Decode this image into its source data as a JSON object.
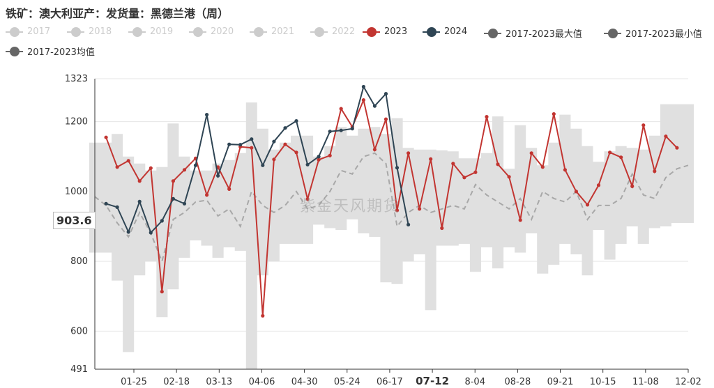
{
  "title": "铁矿：澳大利亚产：发货量：黑德兰港（周）",
  "watermark": "紫金天风期货",
  "axis_pointer": {
    "y_label": "903.6",
    "x_label": "07-12"
  },
  "colors": {
    "y2023": "#c23531",
    "y2024": "#2f4554",
    "band": "#e0e0e0",
    "mean": "#a8a8a8",
    "inactive": "#cccccc",
    "stat": "#666666"
  },
  "legend": [
    {
      "label": "2017",
      "active": false,
      "color": "#cccccc"
    },
    {
      "label": "2018",
      "active": false,
      "color": "#cccccc"
    },
    {
      "label": "2019",
      "active": false,
      "color": "#cccccc"
    },
    {
      "label": "2020",
      "active": false,
      "color": "#cccccc"
    },
    {
      "label": "2021",
      "active": false,
      "color": "#cccccc"
    },
    {
      "label": "2022",
      "active": false,
      "color": "#cccccc"
    },
    {
      "label": "2023",
      "active": true,
      "color": "#c23531"
    },
    {
      "label": "2024",
      "active": true,
      "color": "#2f4554"
    },
    {
      "label": "2017-2023最大值",
      "active": true,
      "color": "#666666"
    },
    {
      "label": "2017-2023最小值",
      "active": true,
      "color": "#666666"
    },
    {
      "label": "2017-2023均值",
      "active": true,
      "color": "#666666"
    }
  ],
  "chart_data": {
    "type": "line",
    "title": "铁矿：澳大利亚产：发货量：黑德兰港（周）",
    "x_ticks": [
      "01-25",
      "02-18",
      "03-13",
      "04-06",
      "04-30",
      "05-24",
      "06-17",
      "07-12",
      "8-04",
      "08-28",
      "09-21",
      "10-15",
      "11-08",
      "12-02"
    ],
    "y_ticks": [
      491,
      600,
      800,
      1000,
      1200,
      1323
    ],
    "ylim": [
      491,
      1323
    ],
    "xlim": [
      0,
      53
    ],
    "grid": "horizontal",
    "legend_position": "top",
    "series": [
      {
        "name": "2023",
        "x": [
          1,
          2,
          3,
          4,
          5,
          6,
          7,
          8,
          9,
          10,
          11,
          12,
          13,
          14,
          15,
          16,
          17,
          18,
          19,
          20,
          21,
          22,
          23,
          24,
          25,
          26,
          27,
          28,
          29,
          30,
          31,
          32,
          33,
          34,
          35,
          36,
          37,
          38,
          39,
          40,
          41,
          42,
          43,
          44,
          45,
          46,
          47,
          48,
          49,
          50,
          51,
          52
        ],
        "values": [
          1155,
          1070,
          1088,
          1030,
          1067,
          713,
          1030,
          1062,
          1095,
          990,
          1070,
          1007,
          1128,
          1125,
          644,
          1092,
          1135,
          1112,
          978,
          1091,
          1103,
          1237,
          1185,
          1262,
          1120,
          1207,
          946,
          1110,
          950,
          1093,
          895,
          1080,
          1040,
          1055,
          1214,
          1078,
          1042,
          918,
          1110,
          1070,
          1222,
          1062,
          1000,
          962,
          1018,
          1112,
          1098,
          1015,
          1190,
          1058,
          1158,
          1125
        ]
      },
      {
        "name": "2024",
        "x": [
          1,
          2,
          3,
          4,
          5,
          6,
          7,
          8,
          9,
          10,
          11,
          12,
          13,
          14,
          15,
          16,
          17,
          18,
          19,
          20,
          21,
          22,
          23,
          24,
          25,
          26,
          27,
          28
        ],
        "values": [
          965,
          955,
          884,
          971,
          882,
          916,
          979,
          965,
          1075,
          1220,
          1045,
          1135,
          1134,
          1150,
          1075,
          1143,
          1182,
          1202,
          1077,
          1100,
          1172,
          1175,
          1180,
          1300,
          1245,
          1280,
          1068,
          905
        ]
      },
      {
        "name": "2017-2023最大值",
        "x": [
          0,
          1,
          2,
          3,
          4,
          5,
          6,
          7,
          8,
          9,
          10,
          11,
          12,
          13,
          14,
          15,
          16,
          17,
          18,
          19,
          20,
          21,
          22,
          23,
          24,
          25,
          26,
          27,
          28,
          29,
          30,
          31,
          32,
          33,
          34,
          35,
          36,
          37,
          38,
          39,
          40,
          41,
          42,
          43,
          44,
          45,
          46,
          47,
          48,
          49,
          50,
          51,
          52,
          53
        ],
        "values": [
          1140,
          1140,
          1165,
          1100,
          1080,
          1060,
          1070,
          1195,
          1100,
          1060,
          1060,
          1080,
          1090,
          1110,
          1255,
          1180,
          1120,
          1140,
          1160,
          1160,
          1100,
          1130,
          1185,
          1160,
          1180,
          1185,
          1165,
          1210,
          1125,
          1120,
          1120,
          1118,
          1115,
          1095,
          1095,
          1110,
          1215,
          1065,
          1190,
          1125,
          1075,
          1140,
          1220,
          1180,
          1130,
          1085,
          1115,
          1130,
          1125,
          1120,
          1160,
          1250,
          1250,
          1250
        ]
      },
      {
        "name": "2017-2023最小值",
        "x": [
          0,
          1,
          2,
          3,
          4,
          5,
          6,
          7,
          8,
          9,
          10,
          11,
          12,
          13,
          14,
          15,
          16,
          17,
          18,
          19,
          20,
          21,
          22,
          23,
          24,
          25,
          26,
          27,
          28,
          29,
          30,
          31,
          32,
          33,
          34,
          35,
          36,
          37,
          38,
          39,
          40,
          41,
          42,
          43,
          44,
          45,
          46,
          47,
          48,
          49,
          50,
          51,
          52,
          53
        ],
        "values": [
          825,
          825,
          745,
          540,
          760,
          800,
          640,
          720,
          810,
          860,
          845,
          810,
          840,
          830,
          490,
          760,
          800,
          850,
          850,
          850,
          905,
          895,
          890,
          920,
          880,
          870,
          740,
          735,
          800,
          820,
          660,
          845,
          845,
          850,
          770,
          840,
          780,
          840,
          825,
          880,
          765,
          790,
          850,
          820,
          760,
          890,
          805,
          850,
          900,
          850,
          895,
          900,
          910,
          910
        ]
      },
      {
        "name": "2017-2023均值",
        "x": [
          0,
          1,
          2,
          3,
          4,
          5,
          6,
          7,
          8,
          9,
          10,
          11,
          12,
          13,
          14,
          15,
          16,
          17,
          18,
          19,
          20,
          21,
          22,
          23,
          24,
          25,
          26,
          27,
          28,
          29,
          30,
          31,
          32,
          33,
          34,
          35,
          36,
          37,
          38,
          39,
          40,
          41,
          42,
          43,
          44,
          45,
          46,
          47,
          48,
          49,
          50,
          51,
          52,
          53
        ],
        "values": [
          985,
          960,
          910,
          870,
          940,
          880,
          800,
          920,
          940,
          970,
          975,
          930,
          950,
          900,
          1000,
          960,
          940,
          960,
          1000,
          950,
          960,
          1000,
          1060,
          1050,
          1100,
          1110,
          1080,
          900,
          940,
          960,
          940,
          950,
          960,
          950,
          1020,
          990,
          970,
          950,
          980,
          920,
          1000,
          980,
          970,
          1000,
          920,
          960,
          960,
          980,
          1050,
          990,
          980,
          1040,
          1065,
          1075
        ]
      }
    ]
  }
}
